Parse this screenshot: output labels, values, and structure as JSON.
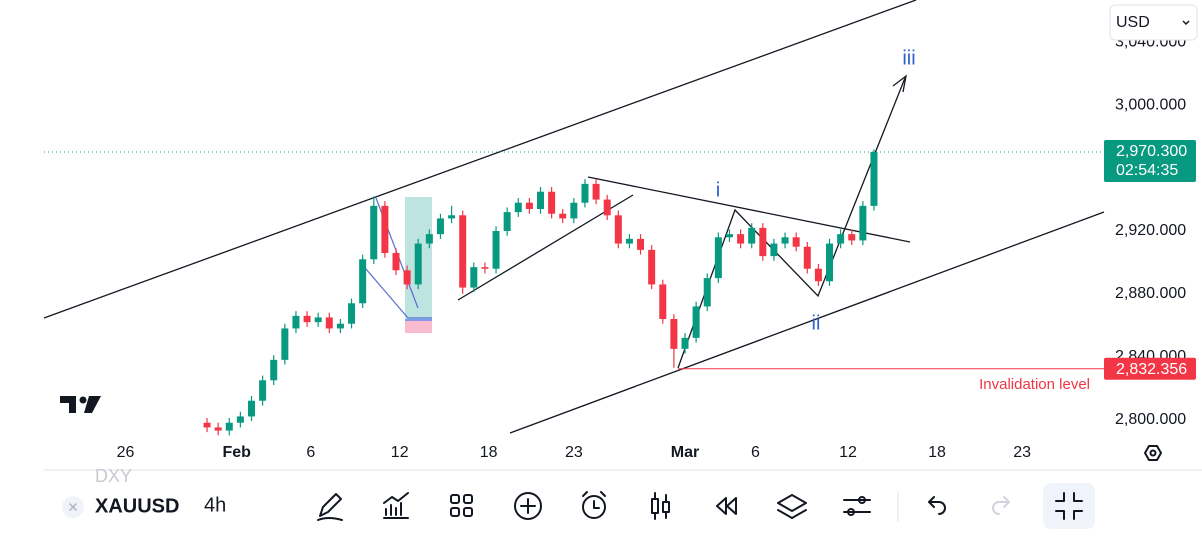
{
  "chart_data": {
    "type": "candlestick",
    "up_color": "#089981",
    "down_color": "#f23645",
    "xlim": [
      0,
      285
    ],
    "ylim": [
      2787,
      3067
    ],
    "xticks": [
      {
        "value": 22,
        "label": "26"
      },
      {
        "value": 52,
        "label": "Feb"
      },
      {
        "value": 72,
        "label": "6"
      },
      {
        "value": 96,
        "label": "12"
      },
      {
        "value": 120,
        "label": "18"
      },
      {
        "value": 143,
        "label": "23"
      },
      {
        "value": 173,
        "label": "Mar"
      },
      {
        "value": 192,
        "label": "6"
      },
      {
        "value": 217,
        "label": "12"
      },
      {
        "value": 241,
        "label": "18"
      },
      {
        "value": 264,
        "label": "23"
      }
    ],
    "yticks": [
      {
        "value": 2800,
        "label": "2,800.000"
      },
      {
        "value": 2840,
        "label": "2,840.000"
      },
      {
        "value": 2880,
        "label": "2,880.000"
      },
      {
        "value": 2920,
        "label": "2,920.000"
      },
      {
        "value": 3000,
        "label": "3,000.000"
      },
      {
        "value": 3040,
        "label": "3,040.000"
      }
    ],
    "x": [
      44,
      47,
      50,
      53,
      56,
      59,
      62,
      65,
      68,
      71,
      74,
      77,
      80,
      83,
      86,
      89,
      92,
      95,
      98,
      101,
      104,
      107,
      110,
      113,
      116,
      119,
      122,
      125,
      128,
      131,
      134,
      137,
      140,
      143,
      146,
      149,
      152,
      155,
      158,
      161,
      164,
      167,
      170,
      173,
      176,
      179,
      182,
      185,
      188,
      191,
      194,
      197,
      200,
      203,
      206,
      209,
      212,
      215,
      218,
      221,
      224
    ],
    "open": [
      2798,
      2795,
      2793,
      2798,
      2802,
      2812,
      2825,
      2838,
      2858,
      2866,
      2862,
      2865,
      2858,
      2861,
      2874,
      2902,
      2936,
      2906,
      2895,
      2886,
      2912,
      2918,
      2928,
      2930,
      2884,
      2897,
      2896,
      2920,
      2932,
      2938,
      2934,
      2945,
      2931,
      2928,
      2938,
      2950,
      2940,
      2930,
      2912,
      2915,
      2908,
      2886,
      2864,
      2845,
      2852,
      2872,
      2890,
      2916,
      2918,
      2912,
      2922,
      2904,
      2912,
      2916,
      2910,
      2896,
      2888,
      2912,
      2918,
      2914,
      2936
    ],
    "high": [
      2801,
      2798,
      2801,
      2805,
      2815,
      2828,
      2841,
      2861,
      2869,
      2869,
      2868,
      2868,
      2864,
      2877,
      2905,
      2942,
      2939,
      2909,
      2898,
      2915,
      2921,
      2931,
      2936,
      2933,
      2900,
      2900,
      2923,
      2935,
      2941,
      2941,
      2948,
      2948,
      2934,
      2941,
      2953,
      2953,
      2943,
      2933,
      2918,
      2918,
      2911,
      2889,
      2867,
      2855,
      2875,
      2893,
      2919,
      2921,
      2921,
      2925,
      2925,
      2915,
      2919,
      2919,
      2913,
      2899,
      2915,
      2921,
      2921,
      2939,
      2972
    ],
    "low": [
      2792,
      2790,
      2790,
      2795,
      2799,
      2809,
      2822,
      2835,
      2855,
      2859,
      2859,
      2855,
      2855,
      2858,
      2871,
      2899,
      2903,
      2892,
      2883,
      2883,
      2909,
      2915,
      2925,
      2880,
      2881,
      2893,
      2893,
      2917,
      2929,
      2931,
      2931,
      2928,
      2925,
      2925,
      2935,
      2937,
      2927,
      2909,
      2909,
      2905,
      2883,
      2861,
      2833,
      2842,
      2849,
      2869,
      2887,
      2913,
      2909,
      2909,
      2901,
      2901,
      2909,
      2907,
      2893,
      2885,
      2885,
      2909,
      2911,
      2911,
      2933
    ],
    "close": [
      2795,
      2793,
      2798,
      2802,
      2812,
      2825,
      2838,
      2858,
      2866,
      2862,
      2865,
      2858,
      2861,
      2874,
      2902,
      2936,
      2906,
      2895,
      2886,
      2912,
      2918,
      2928,
      2930,
      2884,
      2897,
      2896,
      2920,
      2932,
      2938,
      2934,
      2945,
      2931,
      2928,
      2938,
      2950,
      2940,
      2930,
      2912,
      2915,
      2908,
      2886,
      2864,
      2845,
      2852,
      2872,
      2890,
      2916,
      2918,
      2912,
      2922,
      2904,
      2912,
      2916,
      2910,
      2896,
      2888,
      2912,
      2918,
      2914,
      2936,
      2970.3
    ],
    "price_labels": [
      {
        "value": 2970.3,
        "label": "2,970.300",
        "color": "#089981"
      },
      {
        "value": 2832.356,
        "label": "2,832.356",
        "color": "#f23645"
      }
    ],
    "countdown": "02:54:35",
    "annotations": [
      {
        "text": "i",
        "color": "#2f5fd0"
      },
      {
        "text": "ii",
        "color": "#2f5fd0"
      },
      {
        "text": "iii",
        "color": "#2f5fd0"
      },
      {
        "text": "Invalidation level",
        "color": "#f23645"
      }
    ]
  },
  "ui": {
    "currency": "USD",
    "previous_symbol": "DXY",
    "symbol": "XAUUSD",
    "interval": "4h"
  }
}
